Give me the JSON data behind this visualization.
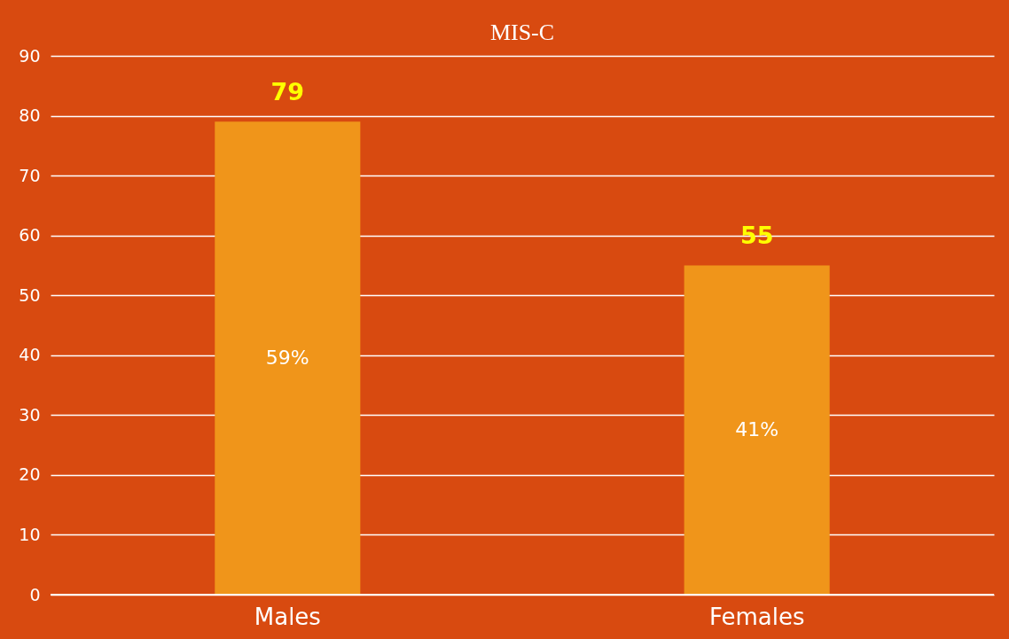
{
  "chart_data": {
    "type": "bar",
    "title": "MIS-C",
    "categories": [
      "Males",
      "Females"
    ],
    "values": [
      79,
      55
    ],
    "color": "#f0951a",
    "ylim": [
      0,
      90
    ],
    "yticks": [
      0,
      10,
      20,
      30,
      40,
      50,
      60,
      70,
      80,
      90
    ],
    "grid": "y",
    "data_labels": true,
    "annotations": [
      "59%",
      "41%"
    ]
  }
}
